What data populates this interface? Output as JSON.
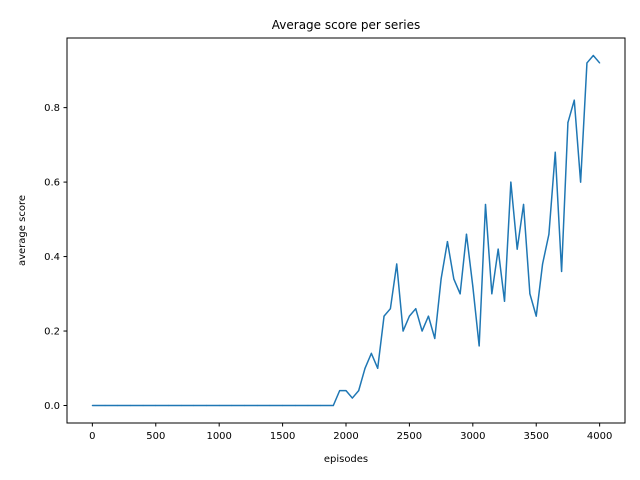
{
  "chart_data": {
    "type": "line",
    "title": "Average score per series",
    "xlabel": "episodes",
    "ylabel": "average score",
    "xlim": [
      -200,
      4200
    ],
    "ylim": [
      -0.047,
      0.987
    ],
    "grid": false,
    "x_ticks": [
      0,
      500,
      1000,
      1500,
      2000,
      2500,
      3000,
      3500,
      4000
    ],
    "y_ticks": [
      0.0,
      0.2,
      0.4,
      0.6,
      0.8
    ],
    "x_tick_labels": [
      "0",
      "500",
      "1000",
      "1500",
      "2000",
      "2500",
      "3000",
      "3500",
      "4000"
    ],
    "y_tick_labels": [
      "0.0",
      "0.2",
      "0.4",
      "0.6",
      "0.8"
    ],
    "series": [
      {
        "color": "#1f77b4",
        "points": [
          [
            0,
            0.0
          ],
          [
            100,
            0.0
          ],
          [
            200,
            0.0
          ],
          [
            300,
            0.0
          ],
          [
            400,
            0.0
          ],
          [
            500,
            0.0
          ],
          [
            600,
            0.0
          ],
          [
            700,
            0.0
          ],
          [
            800,
            0.0
          ],
          [
            900,
            0.0
          ],
          [
            1000,
            0.0
          ],
          [
            1100,
            0.0
          ],
          [
            1200,
            0.0
          ],
          [
            1300,
            0.0
          ],
          [
            1400,
            0.0
          ],
          [
            1500,
            0.0
          ],
          [
            1600,
            0.0
          ],
          [
            1700,
            0.0
          ],
          [
            1800,
            0.0
          ],
          [
            1900,
            0.0
          ],
          [
            1950,
            0.04
          ],
          [
            2000,
            0.04
          ],
          [
            2050,
            0.02
          ],
          [
            2100,
            0.04
          ],
          [
            2150,
            0.1
          ],
          [
            2200,
            0.14
          ],
          [
            2250,
            0.1
          ],
          [
            2300,
            0.24
          ],
          [
            2350,
            0.26
          ],
          [
            2400,
            0.38
          ],
          [
            2450,
            0.2
          ],
          [
            2500,
            0.24
          ],
          [
            2550,
            0.26
          ],
          [
            2600,
            0.2
          ],
          [
            2650,
            0.24
          ],
          [
            2700,
            0.18
          ],
          [
            2750,
            0.34
          ],
          [
            2800,
            0.44
          ],
          [
            2850,
            0.34
          ],
          [
            2900,
            0.3
          ],
          [
            2950,
            0.46
          ],
          [
            3000,
            0.32
          ],
          [
            3050,
            0.16
          ],
          [
            3100,
            0.54
          ],
          [
            3150,
            0.3
          ],
          [
            3200,
            0.42
          ],
          [
            3250,
            0.28
          ],
          [
            3300,
            0.6
          ],
          [
            3350,
            0.42
          ],
          [
            3400,
            0.54
          ],
          [
            3450,
            0.3
          ],
          [
            3500,
            0.24
          ],
          [
            3550,
            0.38
          ],
          [
            3600,
            0.46
          ],
          [
            3650,
            0.68
          ],
          [
            3700,
            0.36
          ],
          [
            3750,
            0.76
          ],
          [
            3800,
            0.82
          ],
          [
            3850,
            0.6
          ],
          [
            3900,
            0.92
          ],
          [
            3950,
            0.94
          ],
          [
            4000,
            0.92
          ]
        ]
      }
    ]
  }
}
